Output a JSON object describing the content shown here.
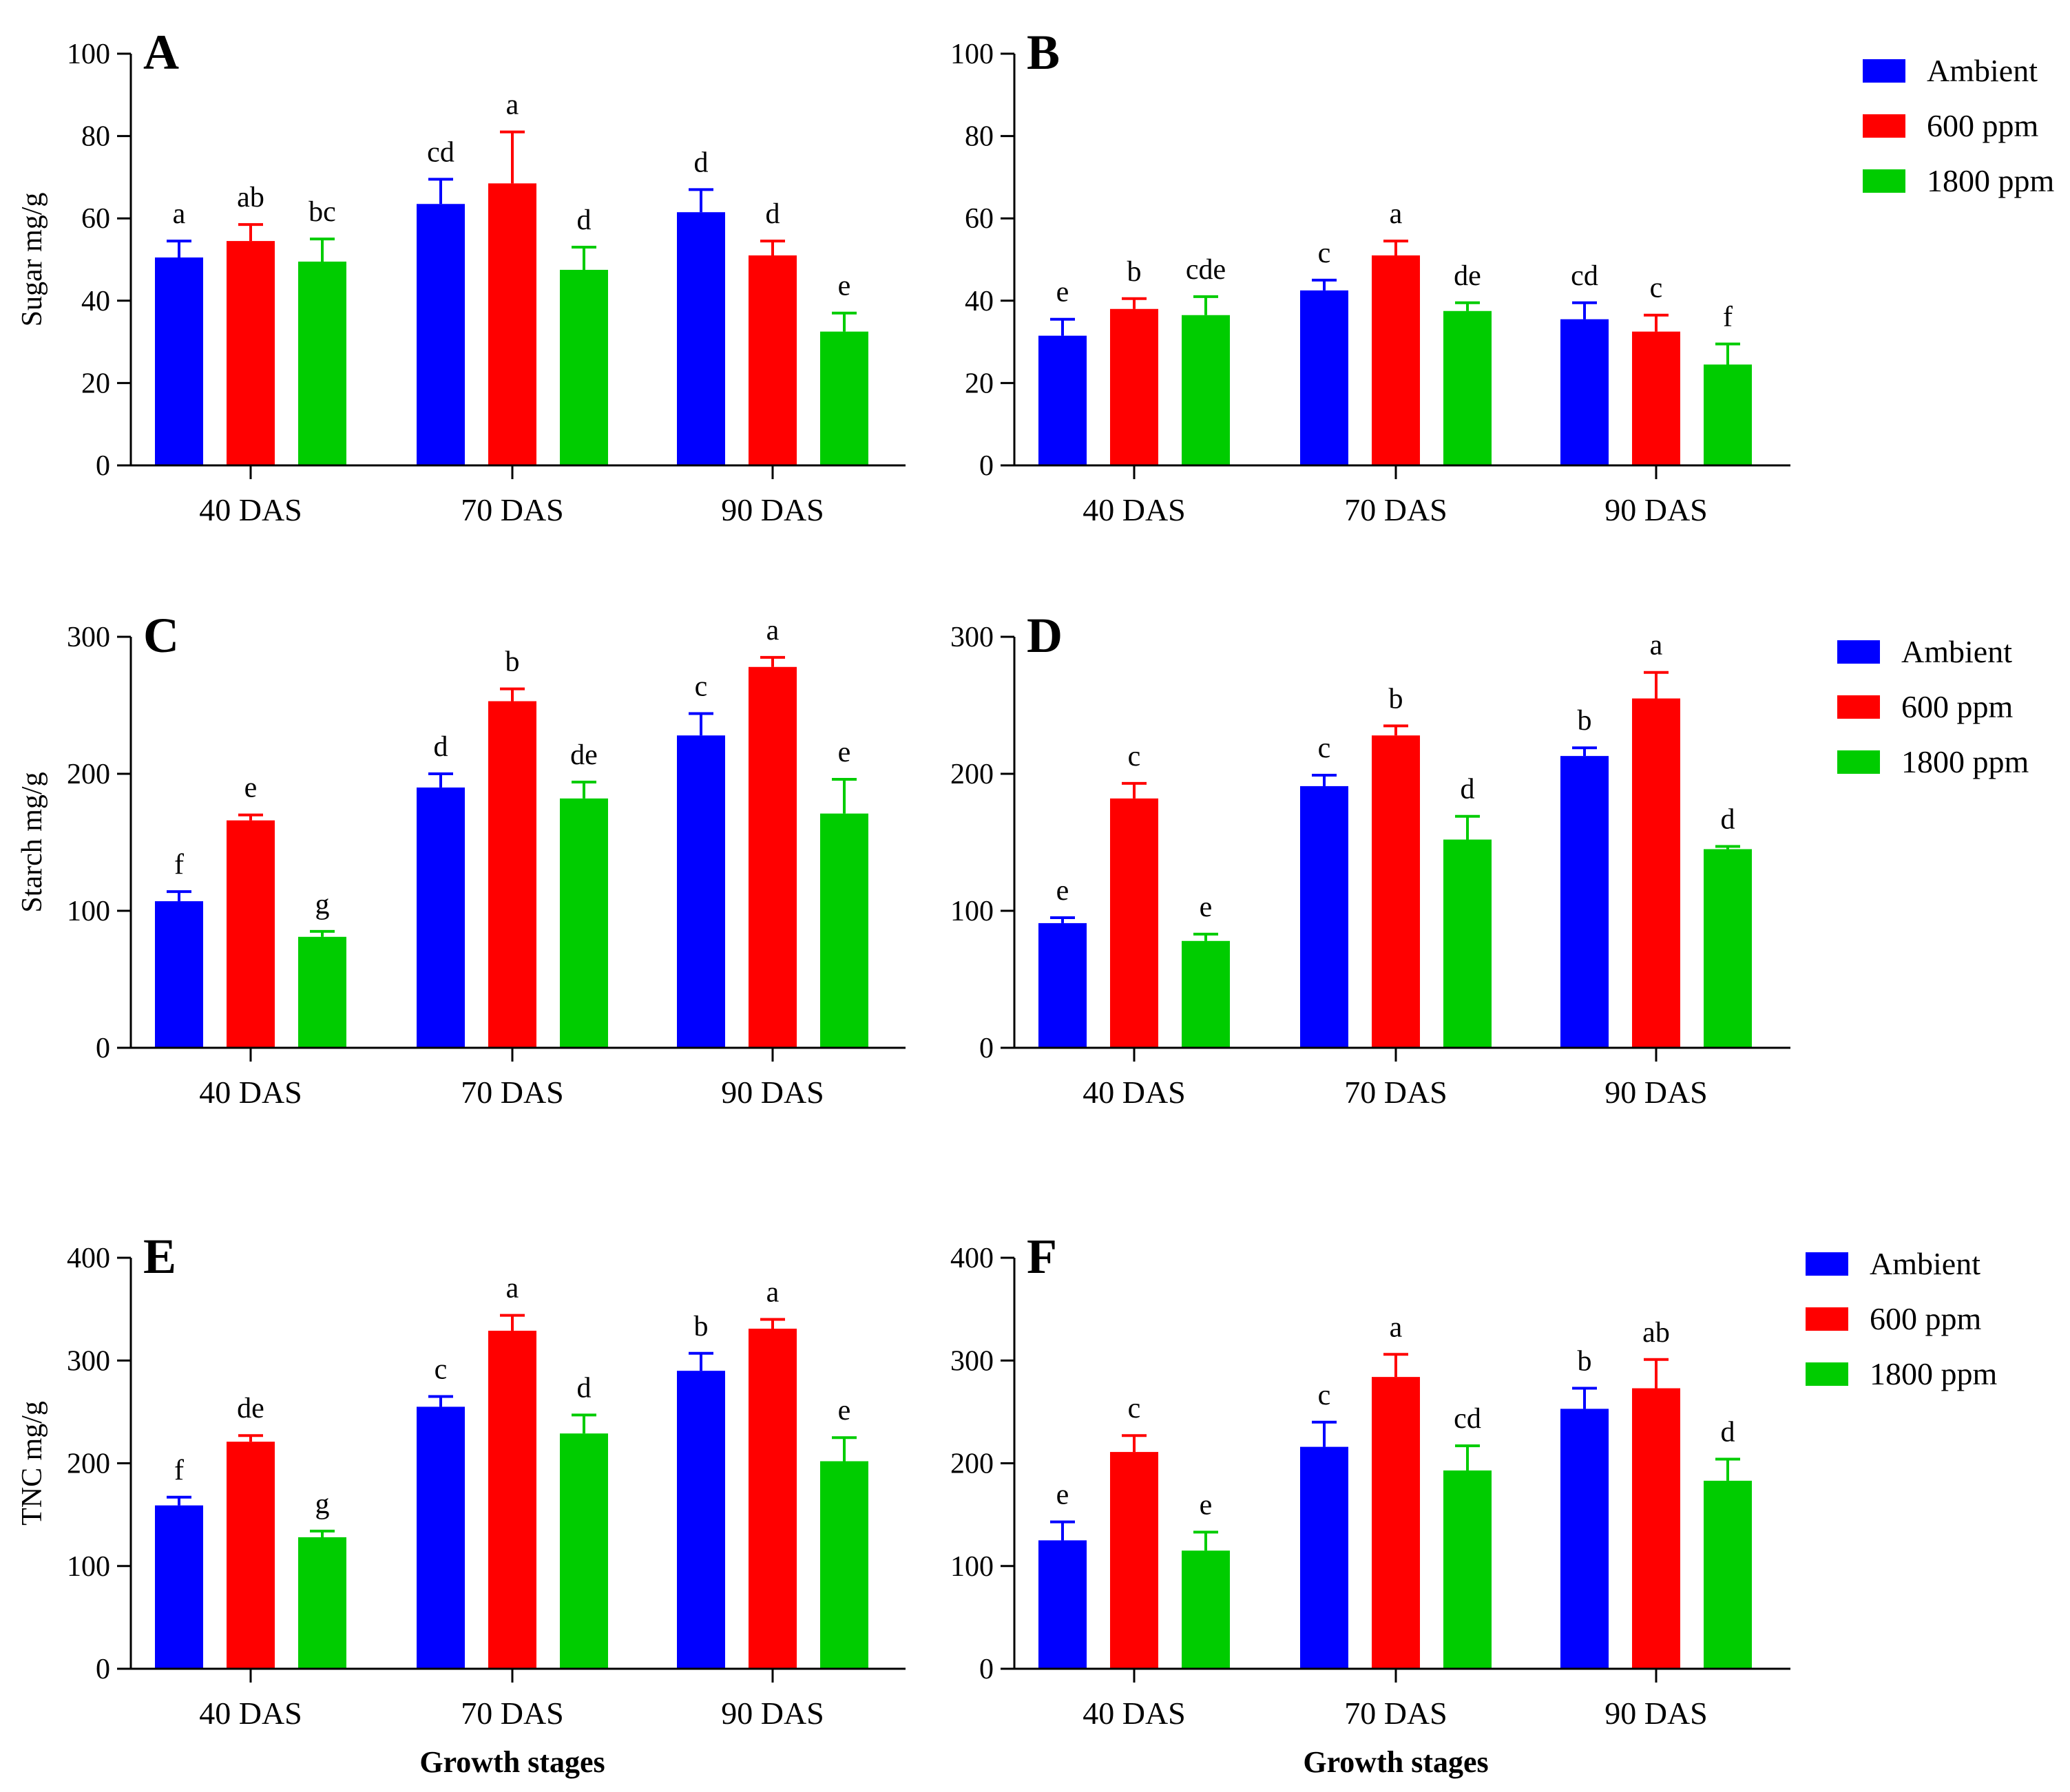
{
  "colors": {
    "ambient": "#0000FF",
    "ppm600": "#FF0000",
    "ppm1800": "#00CC00",
    "axis": "#000000"
  },
  "legend": [
    "Ambient",
    "600 ppm",
    "1800 ppm"
  ],
  "chart_data": [
    {
      "type": "bar",
      "panel": "A",
      "ylabel": "Sugar mg/g",
      "xlabel": "",
      "ylim": [
        0,
        100
      ],
      "yticks": [
        0,
        20,
        40,
        60,
        80,
        100
      ],
      "categories": [
        "40 DAS",
        "70 DAS",
        "90 DAS"
      ],
      "series": [
        {
          "name": "Ambient",
          "values": [
            50.5,
            63.5,
            61.5
          ],
          "errors": [
            4,
            6,
            5.5
          ],
          "labels": [
            "a",
            "cd",
            "d"
          ]
        },
        {
          "name": "600 ppm",
          "values": [
            54.5,
            68.5,
            51
          ],
          "errors": [
            4,
            12.5,
            3.5
          ],
          "labels": [
            "ab",
            "a",
            "d"
          ]
        },
        {
          "name": "1800 ppm",
          "values": [
            49.5,
            47.5,
            32.5
          ],
          "errors": [
            5.5,
            5.5,
            4.5
          ],
          "labels": [
            "bc",
            "d",
            "e"
          ]
        }
      ]
    },
    {
      "type": "bar",
      "panel": "B",
      "ylabel": "",
      "xlabel": "",
      "ylim": [
        0,
        100
      ],
      "yticks": [
        0,
        20,
        40,
        60,
        80,
        100
      ],
      "categories": [
        "40 DAS",
        "70 DAS",
        "90 DAS"
      ],
      "series": [
        {
          "name": "Ambient",
          "values": [
            31.5,
            42.5,
            35.5
          ],
          "errors": [
            4,
            2.5,
            4
          ],
          "labels": [
            "e",
            "c",
            "cd"
          ]
        },
        {
          "name": "600 ppm",
          "values": [
            38,
            51,
            32.5
          ],
          "errors": [
            2.5,
            3.5,
            4
          ],
          "labels": [
            "b",
            "a",
            "c"
          ]
        },
        {
          "name": "1800 ppm",
          "values": [
            36.5,
            37.5,
            24.5
          ],
          "errors": [
            4.5,
            2,
            5
          ],
          "labels": [
            "cde",
            "de",
            "f"
          ]
        }
      ]
    },
    {
      "type": "bar",
      "panel": "C",
      "ylabel": "Starch mg/g",
      "xlabel": "",
      "ylim": [
        0,
        300
      ],
      "yticks": [
        0,
        100,
        200,
        300
      ],
      "categories": [
        "40 DAS",
        "70 DAS",
        "90 DAS"
      ],
      "series": [
        {
          "name": "Ambient",
          "values": [
            107,
            190,
            228
          ],
          "errors": [
            7,
            10,
            16
          ],
          "labels": [
            "f",
            "d",
            "c"
          ]
        },
        {
          "name": "600 ppm",
          "values": [
            166,
            253,
            278
          ],
          "errors": [
            4,
            9,
            7
          ],
          "labels": [
            "e",
            "b",
            "a"
          ]
        },
        {
          "name": "1800 ppm",
          "values": [
            81,
            182,
            171
          ],
          "errors": [
            4,
            12,
            25
          ],
          "labels": [
            "g",
            "de",
            "e"
          ]
        }
      ]
    },
    {
      "type": "bar",
      "panel": "D",
      "ylabel": "",
      "xlabel": "",
      "ylim": [
        0,
        300
      ],
      "yticks": [
        0,
        100,
        200,
        300
      ],
      "categories": [
        "40 DAS",
        "70 DAS",
        "90 DAS"
      ],
      "series": [
        {
          "name": "Ambient",
          "values": [
            91,
            191,
            213
          ],
          "errors": [
            4,
            8,
            6
          ],
          "labels": [
            "e",
            "c",
            "b"
          ]
        },
        {
          "name": "600 ppm",
          "values": [
            182,
            228,
            255
          ],
          "errors": [
            11,
            7,
            19
          ],
          "labels": [
            "c",
            "b",
            "a"
          ]
        },
        {
          "name": "1800 ppm",
          "values": [
            78,
            152,
            145
          ],
          "errors": [
            5,
            17,
            2
          ],
          "labels": [
            "e",
            "d",
            "d"
          ]
        }
      ]
    },
    {
      "type": "bar",
      "panel": "E",
      "ylabel": "TNC mg/g",
      "xlabel": "Growth stages",
      "ylim": [
        0,
        400
      ],
      "yticks": [
        0,
        100,
        200,
        300,
        400
      ],
      "categories": [
        "40 DAS",
        "70 DAS",
        "90 DAS"
      ],
      "series": [
        {
          "name": "Ambient",
          "values": [
            159,
            255,
            290
          ],
          "errors": [
            8,
            10,
            17
          ],
          "labels": [
            "f",
            "c",
            "b"
          ]
        },
        {
          "name": "600 ppm",
          "values": [
            221,
            329,
            331
          ],
          "errors": [
            6,
            15,
            9
          ],
          "labels": [
            "de",
            "a",
            "a"
          ]
        },
        {
          "name": "1800 ppm",
          "values": [
            128,
            229,
            202
          ],
          "errors": [
            6,
            18,
            23
          ],
          "labels": [
            "g",
            "d",
            "e"
          ]
        }
      ]
    },
    {
      "type": "bar",
      "panel": "F",
      "ylabel": "",
      "xlabel": "Growth stages",
      "ylim": [
        0,
        400
      ],
      "yticks": [
        0,
        100,
        200,
        300,
        400
      ],
      "categories": [
        "40 DAS",
        "70 DAS",
        "90 DAS"
      ],
      "series": [
        {
          "name": "Ambient",
          "values": [
            125,
            216,
            253
          ],
          "errors": [
            18,
            24,
            20
          ],
          "labels": [
            "e",
            "c",
            "b"
          ]
        },
        {
          "name": "600 ppm",
          "values": [
            211,
            284,
            273
          ],
          "errors": [
            16,
            22,
            28
          ],
          "labels": [
            "c",
            "a",
            "ab"
          ]
        },
        {
          "name": "1800 ppm",
          "values": [
            115,
            193,
            183
          ],
          "errors": [
            18,
            24,
            21
          ],
          "labels": [
            "e",
            "cd",
            "d"
          ]
        }
      ]
    }
  ]
}
